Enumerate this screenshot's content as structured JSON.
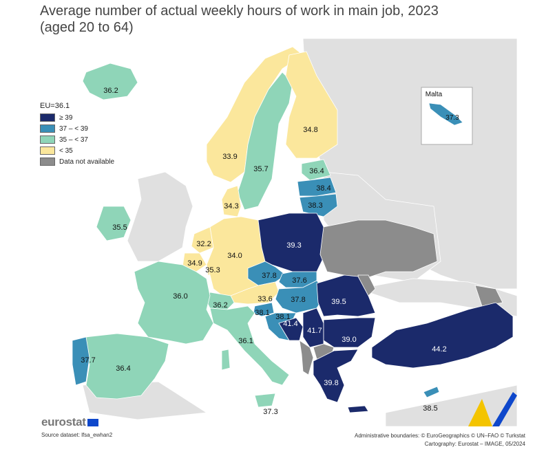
{
  "title": {
    "line1": "Average number of actual weekly hours of work in main job, 2023",
    "line2": "(aged 20 to 64)"
  },
  "legend": {
    "header": "EU=36.1",
    "items": [
      {
        "label": "≥ 39",
        "color": "#1b2a6b"
      },
      {
        "label": "37 – < 39",
        "color": "#3a8fb7"
      },
      {
        "label": "35 – < 37",
        "color": "#8fd5b8"
      },
      {
        "label": "< 35",
        "color": "#fbe79c"
      },
      {
        "label": "Data not available",
        "color": "#8c8c8c"
      }
    ]
  },
  "inset": {
    "title": "Malta",
    "value": "37.3"
  },
  "values": {
    "iceland": "36.2",
    "ireland": "35.5",
    "norway": "33.9",
    "sweden": "35.7",
    "finland": "34.8",
    "estonia": "36.4",
    "latvia": "38.4",
    "lithuania": "38.3",
    "denmark": "34.3",
    "netherlands": "32.2",
    "belgium": "34.9",
    "luxembourg": "35.3",
    "germany": "34.0",
    "poland": "39.3",
    "czechia": "37.8",
    "slovakia": "37.6",
    "austria": "33.6",
    "hungary": "37.8",
    "switzerland": "36.2",
    "slovenia": "38.1",
    "croatia": "38.1",
    "bosnia": "41.4",
    "serbia": "41.7",
    "romania": "39.5",
    "bulgaria": "39.0",
    "france": "36.0",
    "italy": "36.1",
    "spain": "36.4",
    "portugal": "37.7",
    "greece": "39.8",
    "turkey": "44.2",
    "cyprus": "38.5",
    "malta_main": "37.3"
  },
  "branding": {
    "logo": "eurostat"
  },
  "footer": {
    "source": "Source dataset: lfsa_ewhan2",
    "admin": "Administrative boundaries: © EuroGeographics © UN–FAO © Turkstat",
    "carto": "Cartography: Eurostat – IMAGE, 05/2024"
  }
}
